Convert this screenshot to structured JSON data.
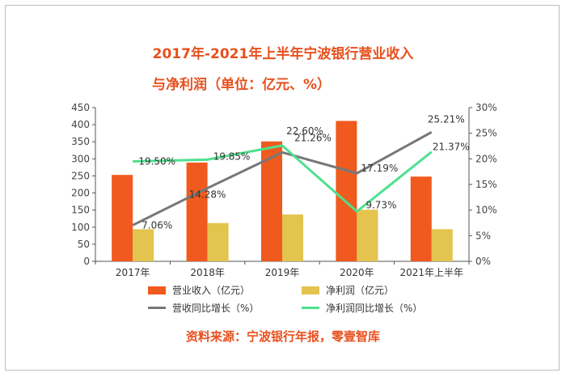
{
  "title": "2017年-2021年上半年宁波银行营业收入",
  "subtitle": "与净利润（单位：亿元、%）",
  "source": "资料来源：宁波银行年报，零壹智库",
  "colors": {
    "revenue": "#f05a1e",
    "profit": "#e2c44e",
    "revenue_growth": "#777777",
    "profit_growth": "#4fe08f"
  },
  "chart_data": {
    "type": "bar",
    "categories": [
      "2017年",
      "2018年",
      "2019年",
      "2020年",
      "2021年上半年"
    ],
    "series": [
      {
        "name": "营业收入（亿元）",
        "type": "bar",
        "axis": "left",
        "values": [
          253,
          289,
          351,
          411,
          248
        ]
      },
      {
        "name": "净利润（亿元）",
        "type": "bar",
        "axis": "left",
        "values": [
          94,
          112,
          137,
          151,
          94
        ]
      },
      {
        "name": "营收同比增长（%）",
        "type": "line",
        "axis": "right",
        "values": [
          7.06,
          14.28,
          21.26,
          17.19,
          25.21
        ],
        "labels": [
          "7.06%",
          "14.28%",
          "21.26%",
          "17.19%",
          "25.21%"
        ]
      },
      {
        "name": "净利润同比增长（%）",
        "type": "line",
        "axis": "right",
        "values": [
          19.5,
          19.85,
          22.6,
          9.73,
          21.37
        ],
        "labels": [
          "19.50%",
          "19.85%",
          "22.60%",
          "9.73%",
          "21.37%"
        ]
      }
    ],
    "left_axis": {
      "min": 0,
      "max": 450,
      "ticks": [
        "0",
        "50",
        "100",
        "150",
        "200",
        "250",
        "300",
        "350",
        "400",
        "450"
      ]
    },
    "right_axis": {
      "min": 0,
      "max": 30,
      "ticks": [
        "0%",
        "5%",
        "10%",
        "15%",
        "20%",
        "25%",
        "30%"
      ]
    },
    "grid": false,
    "legend_position": "bottom"
  }
}
